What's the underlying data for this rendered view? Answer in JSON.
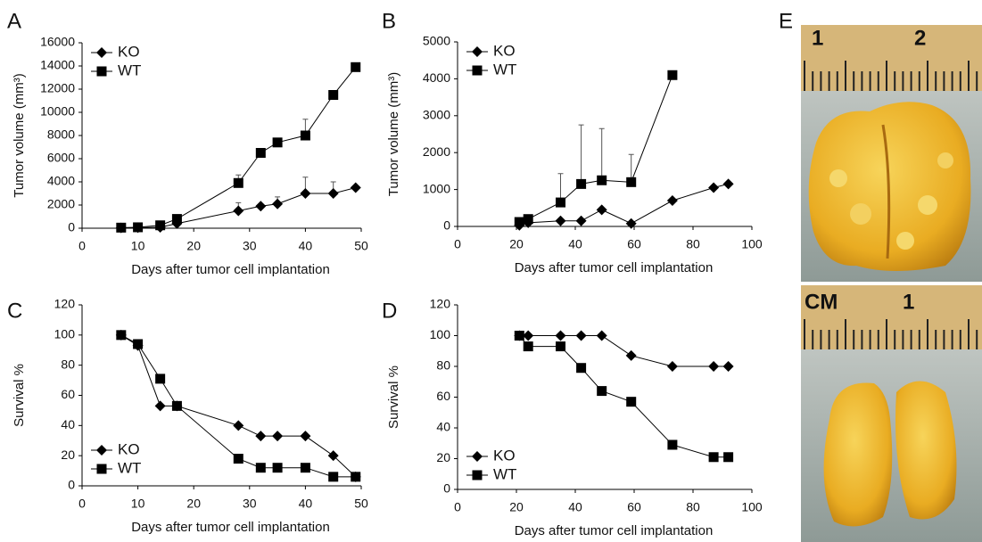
{
  "chart_data": [
    {
      "type": "line",
      "panel_label": "A",
      "xlabel": "Days after tumor cell implantation",
      "ylabel": "Tumor volume (mm³)",
      "xlim": [
        0,
        50
      ],
      "ylim": [
        0,
        16000
      ],
      "xticks": [
        0,
        10,
        20,
        30,
        40,
        50
      ],
      "yticks": [
        0,
        2000,
        4000,
        6000,
        8000,
        10000,
        12000,
        14000,
        16000
      ],
      "legend": "upper left",
      "series": [
        {
          "name": "KO",
          "color": "#000000",
          "marker": "diamond",
          "x": [
            7,
            10,
            14,
            17,
            28,
            32,
            35,
            40,
            45,
            49
          ],
          "values": [
            30,
            50,
            80,
            400,
            1500,
            1900,
            2100,
            3000,
            3000,
            3500
          ],
          "errors": [
            null,
            null,
            null,
            null,
            700,
            null,
            600,
            1400,
            1000,
            null
          ]
        },
        {
          "name": "WT",
          "color": "#000000",
          "marker": "square",
          "x": [
            7,
            10,
            14,
            17,
            28,
            32,
            35,
            40,
            45,
            49
          ],
          "values": [
            50,
            80,
            250,
            800,
            3900,
            6500,
            7400,
            8000,
            11500,
            13900
          ],
          "errors": [
            null,
            null,
            null,
            null,
            700,
            null,
            null,
            1400,
            null,
            null
          ]
        }
      ]
    },
    {
      "type": "line",
      "panel_label": "B",
      "xlabel": "Days after tumor cell implantation",
      "ylabel": "Tumor volume (mm³)",
      "xlim": [
        0,
        100
      ],
      "ylim": [
        0,
        5000
      ],
      "xticks": [
        0,
        20,
        40,
        60,
        80,
        100
      ],
      "yticks": [
        0,
        1000,
        2000,
        3000,
        4000,
        5000
      ],
      "legend": "upper left",
      "series": [
        {
          "name": "KO",
          "color": "#000000",
          "marker": "diamond",
          "x": [
            21,
            24,
            35,
            42,
            49,
            59,
            73,
            87,
            92
          ],
          "values": [
            30,
            100,
            150,
            150,
            450,
            80,
            700,
            1050,
            1150
          ],
          "errors": [
            null,
            null,
            null,
            null,
            null,
            null,
            null,
            null,
            null
          ]
        },
        {
          "name": "WT",
          "color": "#000000",
          "marker": "square",
          "x": [
            21,
            24,
            35,
            42,
            49,
            59,
            73
          ],
          "values": [
            120,
            200,
            650,
            1150,
            1250,
            1200,
            4100
          ],
          "errors": [
            null,
            100,
            780,
            1600,
            1400,
            750,
            null
          ]
        }
      ]
    },
    {
      "type": "line",
      "panel_label": "C",
      "xlabel": "Days after tumor cell implantation",
      "ylabel": "Survival %",
      "xlim": [
        0,
        50
      ],
      "ylim": [
        0,
        120
      ],
      "xticks": [
        0,
        10,
        20,
        30,
        40,
        50
      ],
      "yticks": [
        0,
        20,
        40,
        60,
        80,
        100,
        120
      ],
      "legend": "lower left",
      "series": [
        {
          "name": "KO",
          "color": "#000000",
          "marker": "diamond",
          "x": [
            7,
            10,
            14,
            17,
            28,
            32,
            35,
            40,
            45,
            49
          ],
          "values": [
            100,
            93,
            53,
            53,
            40,
            33,
            33,
            33,
            20,
            6
          ]
        },
        {
          "name": "WT",
          "color": "#000000",
          "marker": "square",
          "x": [
            7,
            10,
            14,
            17,
            28,
            32,
            35,
            40,
            45,
            49
          ],
          "values": [
            100,
            94,
            71,
            53,
            18,
            12,
            12,
            12,
            6,
            6
          ]
        }
      ]
    },
    {
      "type": "line",
      "panel_label": "D",
      "xlabel": "Days after tumor cell implantation",
      "ylabel": "Survival %",
      "xlim": [
        0,
        100
      ],
      "ylim": [
        0,
        120
      ],
      "xticks": [
        0,
        20,
        40,
        60,
        80,
        100
      ],
      "yticks": [
        0,
        20,
        40,
        60,
        80,
        100,
        120
      ],
      "legend": "lower left",
      "series": [
        {
          "name": "KO",
          "color": "#000000",
          "marker": "diamond",
          "x": [
            21,
            24,
            35,
            42,
            49,
            59,
            73,
            87,
            92
          ],
          "values": [
            100,
            100,
            100,
            100,
            100,
            87,
            80,
            80,
            80
          ]
        },
        {
          "name": "WT",
          "color": "#000000",
          "marker": "square",
          "x": [
            21,
            24,
            35,
            42,
            49,
            59,
            73,
            87,
            92
          ],
          "values": [
            100,
            93,
            93,
            79,
            64,
            57,
            29,
            21,
            21
          ]
        }
      ]
    }
  ],
  "panel_e": {
    "panel_label": "E",
    "top_ruler_labels": [
      "1",
      "2"
    ],
    "bottom_ruler_labels": [
      "CM",
      "1"
    ]
  }
}
